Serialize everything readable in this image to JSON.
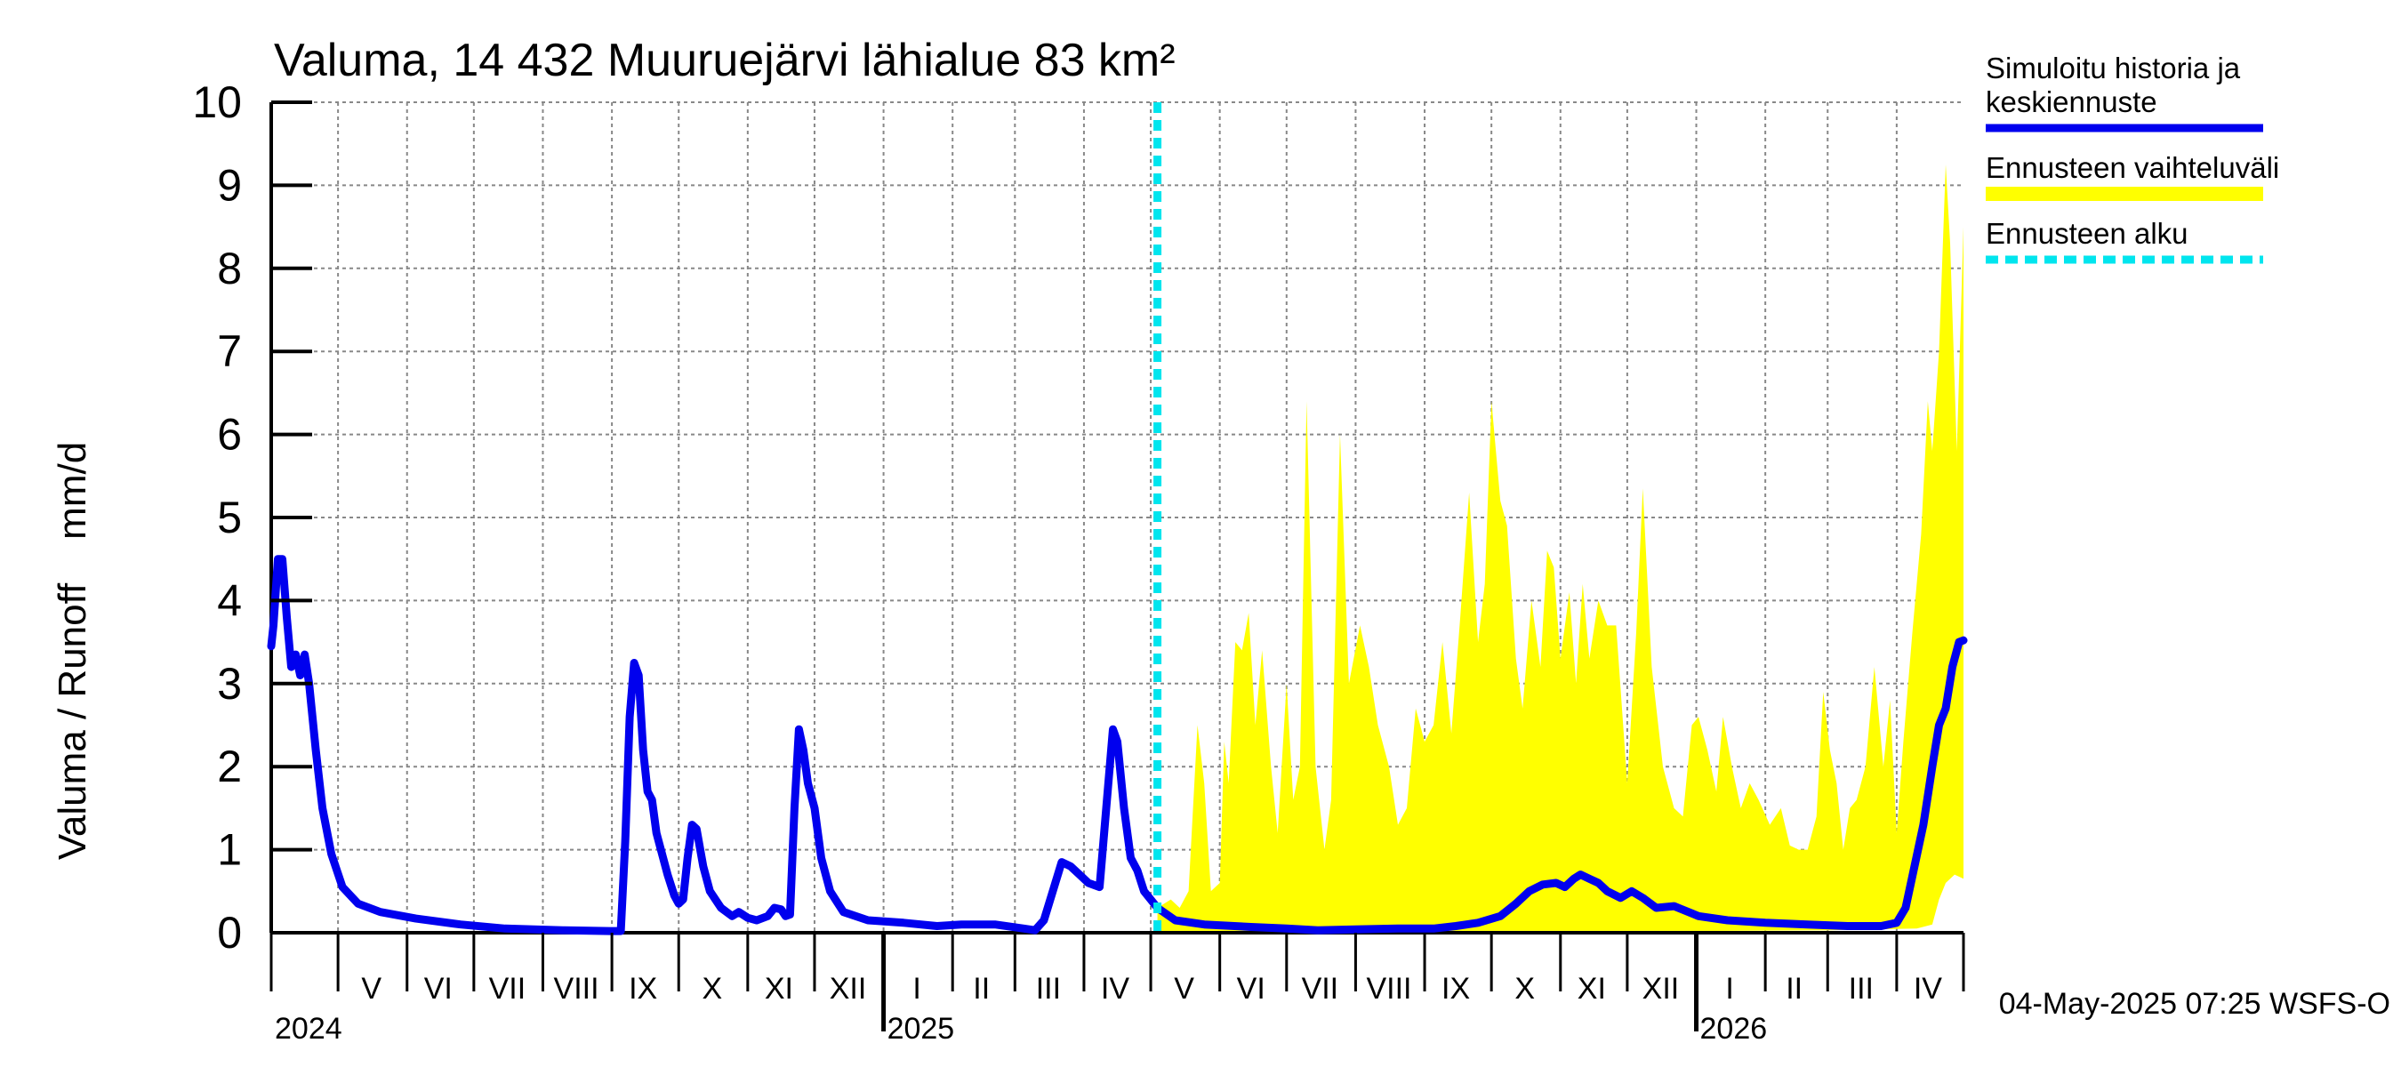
{
  "chart_data": {
    "type": "line",
    "title": "Valuma, 14 432 Muuruejärvi lähialue 83 km²",
    "ylabel": "Valuma / Runoff    mm/d",
    "ylim": [
      0,
      10
    ],
    "yticks": [
      "0",
      "1",
      "2",
      "3",
      "4",
      "5",
      "6",
      "7",
      "8",
      "9",
      "10"
    ],
    "x_start": "2024-04-01",
    "x_end": "2026-05-01",
    "forecast_start": "2025-05-04",
    "month_labels": [
      {
        "label": "V",
        "mid": "2024-05-16"
      },
      {
        "label": "VI",
        "mid": "2024-06-15"
      },
      {
        "label": "VII",
        "mid": "2024-07-16"
      },
      {
        "label": "VIII",
        "mid": "2024-08-16"
      },
      {
        "label": "IX",
        "mid": "2024-09-15"
      },
      {
        "label": "X",
        "mid": "2024-10-16"
      },
      {
        "label": "XI",
        "mid": "2024-11-15"
      },
      {
        "label": "XII",
        "mid": "2024-12-16"
      },
      {
        "label": "I",
        "mid": "2025-01-16"
      },
      {
        "label": "II",
        "mid": "2025-02-14"
      },
      {
        "label": "III",
        "mid": "2025-03-16"
      },
      {
        "label": "IV",
        "mid": "2025-04-15"
      },
      {
        "label": "V",
        "mid": "2025-05-16"
      },
      {
        "label": "VI",
        "mid": "2025-06-15"
      },
      {
        "label": "VII",
        "mid": "2025-07-16"
      },
      {
        "label": "VIII",
        "mid": "2025-08-16"
      },
      {
        "label": "IX",
        "mid": "2025-09-15"
      },
      {
        "label": "X",
        "mid": "2025-10-16"
      },
      {
        "label": "XI",
        "mid": "2025-11-15"
      },
      {
        "label": "XII",
        "mid": "2025-12-16"
      },
      {
        "label": "I",
        "mid": "2026-01-16"
      },
      {
        "label": "II",
        "mid": "2026-02-14"
      },
      {
        "label": "III",
        "mid": "2026-03-16"
      },
      {
        "label": "IV",
        "mid": "2026-04-15"
      }
    ],
    "year_labels": [
      {
        "label": "2024",
        "date": "2024-04-01"
      },
      {
        "label": "2025",
        "date": "2025-01-01"
      },
      {
        "label": "2026",
        "date": "2026-01-01"
      }
    ],
    "series": [
      {
        "name": "Simuloitu historia ja keskiennuste",
        "color": "#0000ee",
        "points": [
          [
            "2024-04-01",
            3.45
          ],
          [
            "2024-04-02",
            3.7
          ],
          [
            "2024-04-04",
            4.5
          ],
          [
            "2024-04-06",
            4.5
          ],
          [
            "2024-04-08",
            3.8
          ],
          [
            "2024-04-10",
            3.2
          ],
          [
            "2024-04-12",
            3.35
          ],
          [
            "2024-04-14",
            3.1
          ],
          [
            "2024-04-16",
            3.35
          ],
          [
            "2024-04-18",
            3.0
          ],
          [
            "2024-04-21",
            2.2
          ],
          [
            "2024-04-24",
            1.5
          ],
          [
            "2024-04-28",
            0.95
          ],
          [
            "2024-05-03",
            0.55
          ],
          [
            "2024-05-10",
            0.35
          ],
          [
            "2024-05-20",
            0.25
          ],
          [
            "2024-06-05",
            0.17
          ],
          [
            "2024-06-25",
            0.1
          ],
          [
            "2024-07-15",
            0.05
          ],
          [
            "2024-08-10",
            0.03
          ],
          [
            "2024-08-31",
            0.02
          ],
          [
            "2024-09-05",
            0.02
          ],
          [
            "2024-09-07",
            1.1
          ],
          [
            "2024-09-09",
            2.6
          ],
          [
            "2024-09-11",
            3.25
          ],
          [
            "2024-09-13",
            3.1
          ],
          [
            "2024-09-15",
            2.2
          ],
          [
            "2024-09-17",
            1.7
          ],
          [
            "2024-09-19",
            1.6
          ],
          [
            "2024-09-21",
            1.2
          ],
          [
            "2024-09-23",
            1.0
          ],
          [
            "2024-09-26",
            0.7
          ],
          [
            "2024-09-29",
            0.45
          ],
          [
            "2024-10-01",
            0.35
          ],
          [
            "2024-10-03",
            0.4
          ],
          [
            "2024-10-05",
            0.9
          ],
          [
            "2024-10-07",
            1.3
          ],
          [
            "2024-10-09",
            1.25
          ],
          [
            "2024-10-12",
            0.8
          ],
          [
            "2024-10-15",
            0.5
          ],
          [
            "2024-10-20",
            0.3
          ],
          [
            "2024-10-25",
            0.2
          ],
          [
            "2024-10-28",
            0.25
          ],
          [
            "2024-11-01",
            0.18
          ],
          [
            "2024-11-05",
            0.15
          ],
          [
            "2024-11-10",
            0.2
          ],
          [
            "2024-11-13",
            0.3
          ],
          [
            "2024-11-16",
            0.28
          ],
          [
            "2024-11-18",
            0.2
          ],
          [
            "2024-11-20",
            0.22
          ],
          [
            "2024-11-22",
            1.5
          ],
          [
            "2024-11-24",
            2.45
          ],
          [
            "2024-11-26",
            2.2
          ],
          [
            "2024-11-28",
            1.8
          ],
          [
            "2024-12-01",
            1.5
          ],
          [
            "2024-12-04",
            0.9
          ],
          [
            "2024-12-08",
            0.5
          ],
          [
            "2024-12-14",
            0.25
          ],
          [
            "2024-12-25",
            0.15
          ],
          [
            "2025-01-10",
            0.12
          ],
          [
            "2025-01-25",
            0.08
          ],
          [
            "2025-02-05",
            0.1
          ],
          [
            "2025-02-20",
            0.1
          ],
          [
            "2025-03-05",
            0.05
          ],
          [
            "2025-03-10",
            0.03
          ],
          [
            "2025-03-14",
            0.15
          ],
          [
            "2025-03-18",
            0.5
          ],
          [
            "2025-03-22",
            0.85
          ],
          [
            "2025-03-26",
            0.8
          ],
          [
            "2025-03-30",
            0.7
          ],
          [
            "2025-04-03",
            0.6
          ],
          [
            "2025-04-08",
            0.55
          ],
          [
            "2025-04-11",
            1.5
          ],
          [
            "2025-04-14",
            2.45
          ],
          [
            "2025-04-16",
            2.3
          ],
          [
            "2025-04-19",
            1.5
          ],
          [
            "2025-04-22",
            0.9
          ],
          [
            "2025-04-25",
            0.75
          ],
          [
            "2025-04-28",
            0.5
          ],
          [
            "2025-05-04",
            0.3
          ],
          [
            "2025-05-12",
            0.15
          ],
          [
            "2025-05-25",
            0.1
          ],
          [
            "2025-06-15",
            0.07
          ],
          [
            "2025-07-01",
            0.05
          ],
          [
            "2025-07-15",
            0.03
          ],
          [
            "2025-08-01",
            0.04
          ],
          [
            "2025-08-20",
            0.05
          ],
          [
            "2025-09-05",
            0.05
          ],
          [
            "2025-09-15",
            0.08
          ],
          [
            "2025-09-25",
            0.12
          ],
          [
            "2025-10-05",
            0.2
          ],
          [
            "2025-10-12",
            0.35
          ],
          [
            "2025-10-18",
            0.5
          ],
          [
            "2025-10-24",
            0.58
          ],
          [
            "2025-10-30",
            0.6
          ],
          [
            "2025-11-03",
            0.55
          ],
          [
            "2025-11-07",
            0.65
          ],
          [
            "2025-11-10",
            0.7
          ],
          [
            "2025-11-14",
            0.65
          ],
          [
            "2025-11-18",
            0.6
          ],
          [
            "2025-11-22",
            0.5
          ],
          [
            "2025-11-28",
            0.42
          ],
          [
            "2025-12-03",
            0.5
          ],
          [
            "2025-12-08",
            0.42
          ],
          [
            "2025-12-14",
            0.3
          ],
          [
            "2025-12-22",
            0.32
          ],
          [
            "2026-01-02",
            0.2
          ],
          [
            "2026-01-15",
            0.15
          ],
          [
            "2026-02-01",
            0.12
          ],
          [
            "2026-02-20",
            0.1
          ],
          [
            "2026-03-10",
            0.08
          ],
          [
            "2026-03-25",
            0.08
          ],
          [
            "2026-04-01",
            0.12
          ],
          [
            "2026-04-05",
            0.3
          ],
          [
            "2026-04-09",
            0.8
          ],
          [
            "2026-04-13",
            1.3
          ],
          [
            "2026-04-17",
            2.0
          ],
          [
            "2026-04-20",
            2.5
          ],
          [
            "2026-04-23",
            2.7
          ],
          [
            "2026-04-26",
            3.2
          ],
          [
            "2026-04-29",
            3.5
          ],
          [
            "2026-05-01",
            3.52
          ]
        ]
      }
    ],
    "band": {
      "name": "Ennusteen vaihteluväli",
      "color": "#ffff00",
      "upper": [
        [
          "2025-05-04",
          0.3
        ],
        [
          "2025-05-10",
          0.4
        ],
        [
          "2025-05-14",
          0.3
        ],
        [
          "2025-05-18",
          0.5
        ],
        [
          "2025-05-20",
          1.5
        ],
        [
          "2025-05-22",
          2.5
        ],
        [
          "2025-05-25",
          1.8
        ],
        [
          "2025-05-28",
          0.5
        ],
        [
          "2025-06-01",
          0.6
        ],
        [
          "2025-06-03",
          2.3
        ],
        [
          "2025-06-05",
          1.8
        ],
        [
          "2025-06-08",
          3.5
        ],
        [
          "2025-06-11",
          3.4
        ],
        [
          "2025-06-14",
          3.85
        ],
        [
          "2025-06-17",
          2.5
        ],
        [
          "2025-06-20",
          3.4
        ],
        [
          "2025-06-24",
          2.0
        ],
        [
          "2025-06-27",
          1.2
        ],
        [
          "2025-07-01",
          3.0
        ],
        [
          "2025-07-04",
          1.6
        ],
        [
          "2025-07-07",
          2.0
        ],
        [
          "2025-07-10",
          6.4
        ],
        [
          "2025-07-14",
          2.0
        ],
        [
          "2025-07-18",
          1.0
        ],
        [
          "2025-07-21",
          1.6
        ],
        [
          "2025-07-25",
          6.0
        ],
        [
          "2025-07-29",
          3.0
        ],
        [
          "2025-08-03",
          3.7
        ],
        [
          "2025-08-07",
          3.2
        ],
        [
          "2025-08-11",
          2.5
        ],
        [
          "2025-08-16",
          2.0
        ],
        [
          "2025-08-20",
          1.3
        ],
        [
          "2025-08-24",
          1.5
        ],
        [
          "2025-08-28",
          2.7
        ],
        [
          "2025-09-01",
          2.3
        ],
        [
          "2025-09-05",
          2.5
        ],
        [
          "2025-09-09",
          3.5
        ],
        [
          "2025-09-13",
          2.4
        ],
        [
          "2025-09-17",
          3.8
        ],
        [
          "2025-09-21",
          5.3
        ],
        [
          "2025-09-25",
          3.5
        ],
        [
          "2025-09-28",
          4.2
        ],
        [
          "2025-10-01",
          6.4
        ],
        [
          "2025-10-05",
          5.2
        ],
        [
          "2025-10-08",
          4.9
        ],
        [
          "2025-10-12",
          3.3
        ],
        [
          "2025-10-15",
          2.7
        ],
        [
          "2025-10-19",
          4.0
        ],
        [
          "2025-10-23",
          3.2
        ],
        [
          "2025-10-26",
          4.6
        ],
        [
          "2025-10-29",
          4.4
        ],
        [
          "2025-11-01",
          3.3
        ],
        [
          "2025-11-05",
          4.1
        ],
        [
          "2025-11-08",
          3.0
        ],
        [
          "2025-11-11",
          4.2
        ],
        [
          "2025-11-14",
          3.3
        ],
        [
          "2025-11-18",
          4.0
        ],
        [
          "2025-11-22",
          3.7
        ],
        [
          "2025-11-26",
          3.7
        ],
        [
          "2025-12-01",
          1.8
        ],
        [
          "2025-12-05",
          3.6
        ],
        [
          "2025-12-08",
          5.35
        ],
        [
          "2025-12-12",
          3.2
        ],
        [
          "2025-12-17",
          2.0
        ],
        [
          "2025-12-22",
          1.5
        ],
        [
          "2025-12-26",
          1.4
        ],
        [
          "2025-12-30",
          2.5
        ],
        [
          "2026-01-02",
          2.6
        ],
        [
          "2026-01-06",
          2.2
        ],
        [
          "2026-01-10",
          1.7
        ],
        [
          "2026-01-13",
          2.6
        ],
        [
          "2026-01-17",
          2.0
        ],
        [
          "2026-01-21",
          1.5
        ],
        [
          "2026-01-25",
          1.8
        ],
        [
          "2026-01-29",
          1.6
        ],
        [
          "2026-02-03",
          1.3
        ],
        [
          "2026-02-08",
          1.5
        ],
        [
          "2026-02-12",
          1.05
        ],
        [
          "2026-02-16",
          1.0
        ],
        [
          "2026-02-20",
          1.0
        ],
        [
          "2026-02-24",
          1.4
        ],
        [
          "2026-02-27",
          2.9
        ],
        [
          "2026-03-02",
          2.2
        ],
        [
          "2026-03-05",
          1.8
        ],
        [
          "2026-03-08",
          1.0
        ],
        [
          "2026-03-11",
          1.5
        ],
        [
          "2026-03-14",
          1.6
        ],
        [
          "2026-03-18",
          2.0
        ],
        [
          "2026-03-22",
          3.2
        ],
        [
          "2026-03-26",
          2.0
        ],
        [
          "2026-03-29",
          2.8
        ],
        [
          "2026-04-01",
          1.2
        ],
        [
          "2026-04-04",
          2.3
        ],
        [
          "2026-04-08",
          3.6
        ],
        [
          "2026-04-12",
          4.8
        ],
        [
          "2026-04-15",
          6.4
        ],
        [
          "2026-04-17",
          5.8
        ],
        [
          "2026-04-20",
          7.0
        ],
        [
          "2026-04-23",
          9.25
        ],
        [
          "2026-04-25",
          8.3
        ],
        [
          "2026-04-28",
          5.8
        ],
        [
          "2026-05-01",
          8.5
        ]
      ],
      "lower": [
        [
          "2025-05-04",
          0.02
        ],
        [
          "2025-06-01",
          0.01
        ],
        [
          "2025-09-01",
          0.01
        ],
        [
          "2026-01-01",
          0.02
        ],
        [
          "2026-03-01",
          0.03
        ],
        [
          "2026-04-10",
          0.05
        ],
        [
          "2026-04-17",
          0.1
        ],
        [
          "2026-04-20",
          0.4
        ],
        [
          "2026-04-23",
          0.6
        ],
        [
          "2026-04-27",
          0.7
        ],
        [
          "2026-05-01",
          0.65
        ]
      ]
    },
    "legend": [
      {
        "label_lines": [
          "Simuloitu historia ja",
          "keskiennuste"
        ],
        "color": "#0000ee",
        "style": "solid"
      },
      {
        "label_lines": [
          "Ennusteen vaihteluväli"
        ],
        "color": "#ffff00",
        "style": "band"
      },
      {
        "label_lines": [
          "Ennusteen alku"
        ],
        "color": "#00e5ee",
        "style": "dashed"
      }
    ],
    "footer": "04-May-2025 07:25 WSFS-O"
  }
}
